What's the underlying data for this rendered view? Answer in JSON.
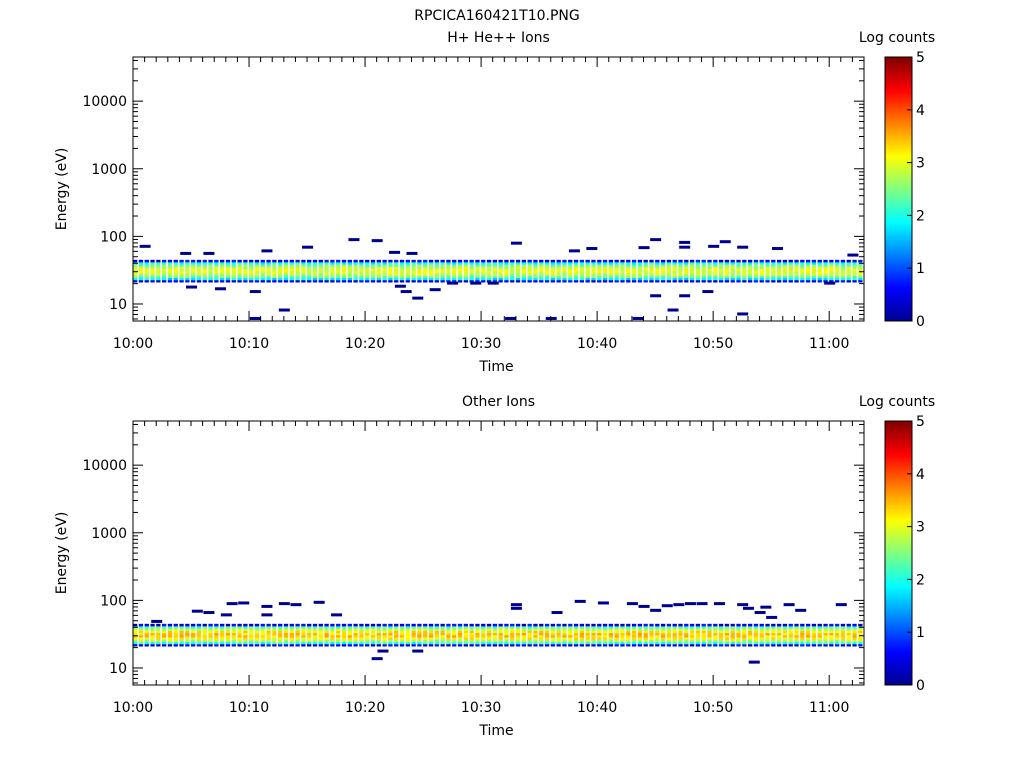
{
  "figure": {
    "title": "RPCICA160421T10.PNG"
  },
  "colors": {
    "colormap": [
      "#00008f",
      "#0000ff",
      "#0080ff",
      "#00ffff",
      "#80ff80",
      "#ffff00",
      "#ff8000",
      "#ff0000",
      "#800000"
    ]
  },
  "chart_data": [
    {
      "type": "heatmap",
      "title": "H+ He++ Ions",
      "xlabel": "Time",
      "ylabel": "Energy (eV)",
      "x_range_minutes": [
        0,
        63
      ],
      "x_ticks": [
        {
          "minute": 0,
          "label": "10:00"
        },
        {
          "minute": 10,
          "label": "10:10"
        },
        {
          "minute": 20,
          "label": "10:20"
        },
        {
          "minute": 30,
          "label": "10:30"
        },
        {
          "minute": 40,
          "label": "10:40"
        },
        {
          "minute": 50,
          "label": "10:50"
        },
        {
          "minute": 60,
          "label": "11:00"
        }
      ],
      "y_scale": "log",
      "y_range": [
        5.6,
        45000
      ],
      "y_ticks": [
        {
          "value": 10,
          "label": "10"
        },
        {
          "value": 100,
          "label": "100"
        },
        {
          "value": 1000,
          "label": "1000"
        },
        {
          "value": 10000,
          "label": "10000"
        }
      ],
      "colorbar": {
        "label": "Log counts",
        "range": [
          0,
          5
        ],
        "ticks": [
          "0",
          "1",
          "2",
          "3",
          "4",
          "5"
        ]
      },
      "band": {
        "energy_low": 21,
        "energy_high": 45,
        "peak_energy": 31,
        "peak_log_counts": 3.0
      },
      "sparse_points": [
        {
          "t": 1,
          "e": 70
        },
        {
          "t": 4.5,
          "e": 55
        },
        {
          "t": 6.5,
          "e": 55
        },
        {
          "t": 11.5,
          "e": 60
        },
        {
          "t": 15,
          "e": 68
        },
        {
          "t": 19,
          "e": 88
        },
        {
          "t": 21,
          "e": 85
        },
        {
          "t": 22.5,
          "e": 57
        },
        {
          "t": 24,
          "e": 55
        },
        {
          "t": 33,
          "e": 78
        },
        {
          "t": 38,
          "e": 60
        },
        {
          "t": 39.5,
          "e": 65
        },
        {
          "t": 44,
          "e": 67
        },
        {
          "t": 45,
          "e": 88
        },
        {
          "t": 47.5,
          "e": 80
        },
        {
          "t": 47.5,
          "e": 68
        },
        {
          "t": 50,
          "e": 70
        },
        {
          "t": 51,
          "e": 82
        },
        {
          "t": 52.5,
          "e": 68
        },
        {
          "t": 55.5,
          "e": 65
        },
        {
          "t": 62,
          "e": 52
        },
        {
          "t": 5,
          "e": 17.5
        },
        {
          "t": 7.5,
          "e": 16.5
        },
        {
          "t": 10.5,
          "e": 15
        },
        {
          "t": 13,
          "e": 8
        },
        {
          "t": 10.5,
          "e": 6
        },
        {
          "t": 23,
          "e": 18
        },
        {
          "t": 23.5,
          "e": 15
        },
        {
          "t": 24.5,
          "e": 12
        },
        {
          "t": 26,
          "e": 16
        },
        {
          "t": 27.5,
          "e": 20
        },
        {
          "t": 29.5,
          "e": 20
        },
        {
          "t": 31,
          "e": 20
        },
        {
          "t": 32.5,
          "e": 6
        },
        {
          "t": 36,
          "e": 6
        },
        {
          "t": 43.5,
          "e": 6
        },
        {
          "t": 45,
          "e": 13
        },
        {
          "t": 46.5,
          "e": 8
        },
        {
          "t": 47.5,
          "e": 13
        },
        {
          "t": 49.5,
          "e": 15
        },
        {
          "t": 52.5,
          "e": 7
        },
        {
          "t": 60,
          "e": 20
        }
      ]
    },
    {
      "type": "heatmap",
      "title": "Other Ions",
      "xlabel": "Time",
      "ylabel": "Energy (eV)",
      "x_range_minutes": [
        0,
        63
      ],
      "x_ticks": [
        {
          "minute": 0,
          "label": "10:00"
        },
        {
          "minute": 10,
          "label": "10:10"
        },
        {
          "minute": 20,
          "label": "10:20"
        },
        {
          "minute": 30,
          "label": "10:30"
        },
        {
          "minute": 40,
          "label": "10:40"
        },
        {
          "minute": 50,
          "label": "10:50"
        },
        {
          "minute": 60,
          "label": "11:00"
        }
      ],
      "y_scale": "log",
      "y_range": [
        5.6,
        45000
      ],
      "y_ticks": [
        {
          "value": 10,
          "label": "10"
        },
        {
          "value": 100,
          "label": "100"
        },
        {
          "value": 1000,
          "label": "1000"
        },
        {
          "value": 10000,
          "label": "10000"
        }
      ],
      "colorbar": {
        "label": "Log counts",
        "range": [
          0,
          5
        ],
        "ticks": [
          "0",
          "1",
          "2",
          "3",
          "4",
          "5"
        ]
      },
      "band": {
        "energy_low": 21,
        "energy_high": 45,
        "peak_energy": 31,
        "peak_log_counts": 3.4
      },
      "sparse_points": [
        {
          "t": 2,
          "e": 48
        },
        {
          "t": 5.5,
          "e": 68
        },
        {
          "t": 6.5,
          "e": 65
        },
        {
          "t": 8.5,
          "e": 88
        },
        {
          "t": 9.5,
          "e": 90
        },
        {
          "t": 8,
          "e": 60
        },
        {
          "t": 11.5,
          "e": 80
        },
        {
          "t": 11.5,
          "e": 60
        },
        {
          "t": 13,
          "e": 88
        },
        {
          "t": 14,
          "e": 85
        },
        {
          "t": 16,
          "e": 92
        },
        {
          "t": 17.5,
          "e": 60
        },
        {
          "t": 33,
          "e": 85
        },
        {
          "t": 33,
          "e": 75
        },
        {
          "t": 36.5,
          "e": 65
        },
        {
          "t": 38.5,
          "e": 95
        },
        {
          "t": 40.5,
          "e": 90
        },
        {
          "t": 43,
          "e": 88
        },
        {
          "t": 44,
          "e": 80
        },
        {
          "t": 45,
          "e": 70
        },
        {
          "t": 46,
          "e": 82
        },
        {
          "t": 47,
          "e": 85
        },
        {
          "t": 48,
          "e": 88
        },
        {
          "t": 49,
          "e": 88
        },
        {
          "t": 50.5,
          "e": 88
        },
        {
          "t": 52.5,
          "e": 85
        },
        {
          "t": 53,
          "e": 75
        },
        {
          "t": 54,
          "e": 65
        },
        {
          "t": 54.5,
          "e": 78
        },
        {
          "t": 55,
          "e": 55
        },
        {
          "t": 56.5,
          "e": 85
        },
        {
          "t": 57.5,
          "e": 70
        },
        {
          "t": 61,
          "e": 85
        },
        {
          "t": 21,
          "e": 13.5
        },
        {
          "t": 21.5,
          "e": 17.5
        },
        {
          "t": 24.5,
          "e": 17.5
        },
        {
          "t": 53.5,
          "e": 12
        }
      ]
    }
  ]
}
